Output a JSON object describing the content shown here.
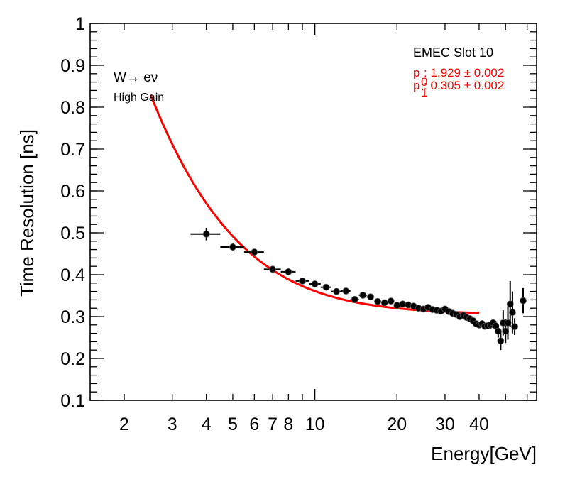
{
  "chart_data": {
    "type": "scatter",
    "title": "",
    "xlabel": "Energy[GeV]",
    "ylabel": "Time Resolution [ns]",
    "xscale": "log",
    "xlim": [
      1.5,
      65
    ],
    "ylim": [
      0.1,
      1.0
    ],
    "grid": false,
    "x_ticks": [
      2,
      3,
      4,
      5,
      6,
      7,
      8,
      10,
      20,
      30,
      40
    ],
    "x_tick_labels": [
      "2",
      "3",
      "4",
      "5",
      "6",
      "7",
      "8",
      "10",
      "20",
      "30",
      "40"
    ],
    "x_minor_ticks": [
      9,
      50,
      60
    ],
    "y_ticks": [
      0.1,
      0.2,
      0.3,
      0.4,
      0.5,
      0.6,
      0.7,
      0.8,
      0.9,
      1.0
    ],
    "y_tick_labels": [
      "0.1",
      "0.2",
      "0.3",
      "0.4",
      "0.5",
      "0.6",
      "0.7",
      "0.8",
      "0.9",
      "1"
    ],
    "annotations": {
      "process": "W→ eν",
      "gain": "High Gain",
      "slot": "EMEC Slot 10",
      "p0_name": "p",
      "p0_sub": "0",
      "p0_text": ": 1.929 ± 0.002",
      "p1_name": "p",
      "p1_sub": "1",
      "p1_text": ": 0.305 ± 0.002"
    },
    "series": [
      {
        "name": "data",
        "color": "#000000",
        "points": [
          {
            "x": 4.0,
            "y": 0.497,
            "xerr": [
              0.5,
              0.5
            ],
            "yerr": 0.015
          },
          {
            "x": 5.0,
            "y": 0.466,
            "xerr": [
              0.5,
              0.5
            ],
            "yerr": 0.01
          },
          {
            "x": 6.0,
            "y": 0.454,
            "xerr": [
              0.5,
              0.5
            ],
            "yerr": 0.008
          },
          {
            "x": 7.0,
            "y": 0.413,
            "xerr": [
              0.5,
              0.5
            ],
            "yerr": 0.007
          },
          {
            "x": 8.0,
            "y": 0.407,
            "xerr": [
              0.5,
              0.5
            ],
            "yerr": 0.007
          },
          {
            "x": 9.0,
            "y": 0.385,
            "xerr": [
              0.5,
              0.5
            ],
            "yerr": 0.006
          },
          {
            "x": 10.0,
            "y": 0.378,
            "xerr": [
              0.5,
              0.5
            ],
            "yerr": 0.006
          },
          {
            "x": 11.0,
            "y": 0.37,
            "xerr": [
              0.5,
              0.5
            ],
            "yerr": 0.006
          },
          {
            "x": 12.0,
            "y": 0.36,
            "xerr": [
              0.5,
              0.5
            ],
            "yerr": 0.006
          },
          {
            "x": 13.0,
            "y": 0.361,
            "xerr": [
              0.5,
              0.5
            ],
            "yerr": 0.006
          },
          {
            "x": 14.0,
            "y": 0.341,
            "xerr": [
              0.5,
              0.5
            ],
            "yerr": 0.007
          },
          {
            "x": 15.0,
            "y": 0.351,
            "xerr": [
              0.5,
              0.5
            ],
            "yerr": 0.008
          },
          {
            "x": 16.0,
            "y": 0.347,
            "xerr": [
              0.5,
              0.5
            ],
            "yerr": 0.008
          },
          {
            "x": 17.0,
            "y": 0.336,
            "xerr": [
              0.5,
              0.5
            ],
            "yerr": 0.007
          },
          {
            "x": 18.0,
            "y": 0.333,
            "xerr": [
              0.5,
              0.5
            ],
            "yerr": 0.007
          },
          {
            "x": 19.0,
            "y": 0.337,
            "xerr": [
              0.5,
              0.5
            ],
            "yerr": 0.007
          },
          {
            "x": 20.0,
            "y": 0.327,
            "xerr": [
              0.5,
              0.5
            ],
            "yerr": 0.007
          },
          {
            "x": 21.0,
            "y": 0.33,
            "xerr": [
              0.5,
              0.5
            ],
            "yerr": 0.007
          },
          {
            "x": 22.0,
            "y": 0.328,
            "xerr": [
              0.5,
              0.5
            ],
            "yerr": 0.007
          },
          {
            "x": 23.0,
            "y": 0.325,
            "xerr": [
              0.5,
              0.5
            ],
            "yerr": 0.007
          },
          {
            "x": 24.0,
            "y": 0.32,
            "xerr": [
              0.5,
              0.5
            ],
            "yerr": 0.007
          },
          {
            "x": 25.0,
            "y": 0.318,
            "xerr": [
              0.5,
              0.5
            ],
            "yerr": 0.007
          },
          {
            "x": 26.0,
            "y": 0.322,
            "xerr": [
              0.5,
              0.5
            ],
            "yerr": 0.007
          },
          {
            "x": 27.0,
            "y": 0.317,
            "xerr": [
              0.5,
              0.5
            ],
            "yerr": 0.007
          },
          {
            "x": 28.0,
            "y": 0.315,
            "xerr": [
              0.5,
              0.5
            ],
            "yerr": 0.007
          },
          {
            "x": 29.0,
            "y": 0.313,
            "xerr": [
              0.5,
              0.5
            ],
            "yerr": 0.007
          },
          {
            "x": 30.0,
            "y": 0.318,
            "xerr": [
              0.5,
              0.5
            ],
            "yerr": 0.007
          },
          {
            "x": 31.0,
            "y": 0.312,
            "xerr": [
              0.5,
              0.5
            ],
            "yerr": 0.007
          },
          {
            "x": 32.0,
            "y": 0.308,
            "xerr": [
              0.5,
              0.5
            ],
            "yerr": 0.007
          },
          {
            "x": 33.0,
            "y": 0.305,
            "xerr": [
              0.5,
              0.5
            ],
            "yerr": 0.007
          },
          {
            "x": 34.0,
            "y": 0.3,
            "xerr": [
              0.5,
              0.5
            ],
            "yerr": 0.007
          },
          {
            "x": 35.0,
            "y": 0.303,
            "xerr": [
              0.5,
              0.5
            ],
            "yerr": 0.007
          },
          {
            "x": 36.0,
            "y": 0.298,
            "xerr": [
              0.5,
              0.5
            ],
            "yerr": 0.007
          },
          {
            "x": 37.0,
            "y": 0.295,
            "xerr": [
              0.5,
              0.5
            ],
            "yerr": 0.007
          },
          {
            "x": 38.0,
            "y": 0.29,
            "xerr": [
              0.5,
              0.5
            ],
            "yerr": 0.007
          },
          {
            "x": 39.0,
            "y": 0.283,
            "xerr": [
              0.5,
              0.5
            ],
            "yerr": 0.007
          },
          {
            "x": 40.0,
            "y": 0.28,
            "xerr": [
              0.5,
              0.5
            ],
            "yerr": 0.008
          },
          {
            "x": 41.0,
            "y": 0.283,
            "xerr": [
              0.5,
              0.5
            ],
            "yerr": 0.008
          },
          {
            "x": 42.0,
            "y": 0.277,
            "xerr": [
              0.5,
              0.5
            ],
            "yerr": 0.008
          },
          {
            "x": 43.0,
            "y": 0.278,
            "xerr": [
              0.5,
              0.5
            ],
            "yerr": 0.008
          },
          {
            "x": 44.0,
            "y": 0.28,
            "xerr": [
              0.5,
              0.5
            ],
            "yerr": 0.009
          },
          {
            "x": 45.0,
            "y": 0.285,
            "xerr": [
              0.5,
              0.5
            ],
            "yerr": 0.01
          },
          {
            "x": 46.0,
            "y": 0.278,
            "xerr": [
              0.5,
              0.5
            ],
            "yerr": 0.012
          },
          {
            "x": 47.0,
            "y": 0.265,
            "xerr": [
              0.5,
              0.5
            ],
            "yerr": 0.015
          },
          {
            "x": 48.0,
            "y": 0.242,
            "xerr": [
              0.5,
              0.5
            ],
            "yerr": 0.022
          },
          {
            "x": 49.0,
            "y": 0.285,
            "xerr": [
              0.5,
              0.5
            ],
            "yerr": 0.03
          },
          {
            "x": 50.0,
            "y": 0.265,
            "xerr": [
              0.5,
              0.5
            ],
            "yerr": 0.028
          },
          {
            "x": 51.0,
            "y": 0.285,
            "xerr": [
              0.5,
              0.5
            ],
            "yerr": 0.04
          },
          {
            "x": 52.0,
            "y": 0.33,
            "xerr": [
              0.5,
              0.5
            ],
            "yerr": 0.055
          },
          {
            "x": 53.0,
            "y": 0.31,
            "xerr": [
              0.5,
              0.5
            ],
            "yerr": 0.05
          },
          {
            "x": 54.0,
            "y": 0.276,
            "xerr": [
              0.5,
              0.5
            ],
            "yerr": 0.02
          },
          {
            "x": 58.0,
            "y": 0.338,
            "xerr": [
              1.0,
              1.0
            ],
            "yerr": 0.03
          }
        ]
      }
    ],
    "fit": {
      "name": "fit",
      "color": "#ff0000",
      "function": "sqrt((p0/E)^2 + p1^2)",
      "p0": 1.929,
      "p1": 0.305,
      "x_range": [
        2.5,
        40
      ]
    }
  }
}
